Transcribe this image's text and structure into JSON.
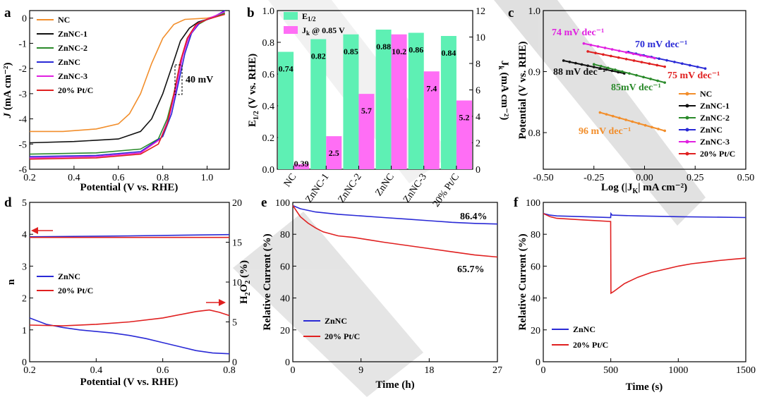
{
  "colors": {
    "NC": "#f28e2b",
    "ZnNC-1": "#111111",
    "ZnNC-2": "#2a8a2a",
    "ZnNC": "#2a2ad6",
    "ZnNC-3": "#e020e0",
    "20% Pt/C": "#e02020",
    "e_half_bar": "#5ef0b4",
    "jk_bar": "#ff6ef5"
  },
  "chart_data": [
    {
      "panel": "a",
      "type": "line",
      "xlabel": "Potential (V vs. RHE)",
      "ylabel_italic": "J",
      "ylabel_rest": " (mA cm⁻²)",
      "xlim": [
        0.2,
        1.1
      ],
      "ylim": [
        -6,
        0.3
      ],
      "xticks": [
        "0.2",
        "0.4",
        "0.6",
        "0.8",
        "1.0"
      ],
      "yticks": [
        "-6",
        "-5",
        "-4",
        "-3",
        "-2",
        "-1",
        "0"
      ],
      "annotation": "40 mV",
      "series": [
        {
          "name": "NC",
          "key": "NC",
          "x": [
            0.2,
            0.35,
            0.5,
            0.6,
            0.65,
            0.7,
            0.75,
            0.8,
            0.85,
            0.9,
            1.0,
            1.08
          ],
          "y": [
            -4.5,
            -4.5,
            -4.4,
            -4.2,
            -3.8,
            -3.0,
            -1.8,
            -0.8,
            -0.25,
            -0.05,
            0.0,
            0.15
          ]
        },
        {
          "name": "ZnNC-1",
          "key": "ZnNC-1",
          "x": [
            0.2,
            0.4,
            0.6,
            0.7,
            0.75,
            0.8,
            0.85,
            0.88,
            0.92,
            0.96,
            1.02,
            1.08
          ],
          "y": [
            -4.95,
            -4.9,
            -4.8,
            -4.5,
            -4.0,
            -3.0,
            -1.7,
            -0.9,
            -0.4,
            -0.15,
            0.0,
            0.2
          ]
        },
        {
          "name": "ZnNC-2",
          "key": "ZnNC-2",
          "x": [
            0.2,
            0.5,
            0.7,
            0.78,
            0.82,
            0.85,
            0.88,
            0.91,
            0.95,
            1.0,
            1.08
          ],
          "y": [
            -5.4,
            -5.35,
            -5.2,
            -4.8,
            -4.0,
            -3.0,
            -1.8,
            -0.9,
            -0.3,
            -0.05,
            0.2
          ]
        },
        {
          "name": "ZnNC",
          "key": "ZnNC",
          "x": [
            0.2,
            0.5,
            0.7,
            0.8,
            0.84,
            0.87,
            0.9,
            0.93,
            0.97,
            1.02,
            1.08
          ],
          "y": [
            -5.5,
            -5.45,
            -5.3,
            -4.7,
            -3.8,
            -2.6,
            -1.4,
            -0.6,
            -0.15,
            0.0,
            0.3
          ]
        },
        {
          "name": "ZnNC-3",
          "key": "ZnNC-3",
          "x": [
            0.2,
            0.5,
            0.7,
            0.79,
            0.83,
            0.86,
            0.89,
            0.92,
            0.96,
            1.01,
            1.08
          ],
          "y": [
            -5.55,
            -5.5,
            -5.35,
            -4.8,
            -3.9,
            -2.8,
            -1.5,
            -0.7,
            -0.2,
            0.0,
            0.25
          ]
        },
        {
          "name": "20% Pt/C",
          "key": "20% Pt/C",
          "x": [
            0.2,
            0.5,
            0.7,
            0.78,
            0.82,
            0.85,
            0.88,
            0.91,
            0.95,
            1.0,
            1.08
          ],
          "y": [
            -5.6,
            -5.55,
            -5.4,
            -5.0,
            -4.2,
            -3.0,
            -1.7,
            -0.8,
            -0.25,
            -0.05,
            0.15
          ]
        }
      ]
    },
    {
      "panel": "b",
      "type": "bar",
      "categories": [
        "NC",
        "ZnNC-1",
        "ZnNC-2",
        "ZnNC",
        "ZnNC-3",
        "20% Pt/C"
      ],
      "series": [
        {
          "name": "E1/2",
          "axis": "left",
          "values": [
            0.74,
            0.82,
            0.85,
            0.88,
            0.86,
            0.84
          ],
          "labels": [
            "0.74",
            "0.82",
            "0.85",
            "0.88",
            "0.86",
            "0.84"
          ]
        },
        {
          "name": "Jk @ 0.85 V",
          "axis": "right",
          "values": [
            0.39,
            2.5,
            5.7,
            10.2,
            7.4,
            5.2
          ],
          "labels": [
            "0.39",
            "2.5",
            "5.7",
            "10.2",
            "7.4",
            "5.2"
          ]
        }
      ],
      "legend": [
        "E",
        "1/2",
        "J",
        "k",
        " @ 0.85 V"
      ],
      "ylabel_left": [
        "E",
        "1/2",
        " (V vs. RHE)"
      ],
      "ylabel_right": [
        "J",
        "k",
        " (mA cm⁻²)"
      ],
      "ylim_left": [
        0,
        1.0
      ],
      "ylim_right": [
        0,
        12
      ],
      "yticks_left": [
        "0.0",
        "0.2",
        "0.4",
        "0.6",
        "0.8",
        "1.0"
      ],
      "yticks_right": [
        "0",
        "2",
        "4",
        "6",
        "8",
        "10",
        "12"
      ]
    },
    {
      "panel": "c",
      "type": "line",
      "xlabel": "Log (|J",
      "xlabel_sub": "K",
      "xlabel_rest": "| mA cm⁻²)",
      "ylabel": "Potential (V vs. RHE)",
      "xlim": [
        -0.5,
        0.5
      ],
      "ylim": [
        0.74,
        1.0
      ],
      "xticks": [
        "-0.50",
        "-0.25",
        "0.00",
        "0.25",
        "0.50"
      ],
      "yticks": [
        "0.8",
        "0.9",
        "1.0"
      ],
      "series": [
        {
          "name": "NC",
          "key": "NC",
          "x": [
            -0.22,
            0.1
          ],
          "y": [
            0.833,
            0.803
          ],
          "tafel": "96 mV dec⁻¹"
        },
        {
          "name": "ZnNC-1",
          "key": "ZnNC-1",
          "x": [
            -0.4,
            -0.1
          ],
          "y": [
            0.918,
            0.897
          ],
          "tafel": "88 mV dec⁻¹"
        },
        {
          "name": "ZnNC-2",
          "key": "ZnNC-2",
          "x": [
            -0.25,
            0.1
          ],
          "y": [
            0.912,
            0.882
          ],
          "tafel": "85mV dec⁻¹"
        },
        {
          "name": "ZnNC",
          "key": "ZnNC",
          "x": [
            -0.08,
            0.3
          ],
          "y": [
            0.932,
            0.905
          ],
          "tafel": "70 mV dec⁻¹"
        },
        {
          "name": "ZnNC-3",
          "key": "ZnNC-3",
          "x": [
            -0.3,
            0.05
          ],
          "y": [
            0.946,
            0.922
          ],
          "tafel": "74 mV dec⁻¹"
        },
        {
          "name": "20% Pt/C",
          "key": "20% Pt/C",
          "x": [
            -0.28,
            0.1
          ],
          "y": [
            0.933,
            0.908
          ],
          "tafel": "75 mV dec⁻¹"
        }
      ]
    },
    {
      "panel": "d",
      "type": "line",
      "xlabel": "Potential (V vs. RHE)",
      "ylabel_left": "n",
      "ylabel_right": [
        "H",
        "2",
        "O",
        "2",
        " (%)"
      ],
      "xlim": [
        0.2,
        0.8
      ],
      "ylim_left": [
        0,
        5
      ],
      "ylim_right": [
        0,
        20
      ],
      "xticks": [
        "0.2",
        "0.4",
        "0.6",
        "0.8"
      ],
      "yticks_left": [
        "0",
        "1",
        "2",
        "3",
        "4",
        "5"
      ],
      "yticks_right": [
        "0",
        "5",
        "10",
        "15",
        "20"
      ],
      "series": [
        {
          "name": "ZnNC n",
          "key": "ZnNC",
          "axis": "left",
          "x": [
            0.2,
            0.5,
            0.8
          ],
          "y": [
            3.92,
            3.95,
            3.99
          ]
        },
        {
          "name": "20% Pt/C n",
          "key": "20% Pt/C",
          "axis": "left",
          "x": [
            0.2,
            0.5,
            0.8
          ],
          "y": [
            3.9,
            3.9,
            3.9
          ]
        },
        {
          "name": "ZnNC H2O2",
          "key": "ZnNC",
          "axis": "right",
          "x": [
            0.2,
            0.25,
            0.3,
            0.35,
            0.4,
            0.45,
            0.5,
            0.55,
            0.6,
            0.65,
            0.7,
            0.75,
            0.8
          ],
          "y": [
            5.5,
            4.7,
            4.3,
            4.0,
            3.8,
            3.6,
            3.3,
            2.9,
            2.4,
            1.9,
            1.4,
            1.1,
            1.0
          ]
        },
        {
          "name": "20% Pt/C H2O2",
          "key": "20% Pt/C",
          "axis": "right",
          "x": [
            0.2,
            0.3,
            0.4,
            0.5,
            0.6,
            0.7,
            0.74,
            0.77,
            0.8
          ],
          "y": [
            4.6,
            4.5,
            4.7,
            5.0,
            5.5,
            6.3,
            6.5,
            6.2,
            5.8
          ]
        }
      ],
      "legend": [
        "ZnNC",
        "20% Pt/C"
      ]
    },
    {
      "panel": "e",
      "type": "line",
      "xlabel": "Time (h)",
      "ylabel": "Relative Current (%)",
      "xlim": [
        0,
        27
      ],
      "ylim": [
        0,
        100
      ],
      "xticks": [
        "0",
        "9",
        "18",
        "27"
      ],
      "yticks": [
        "0",
        "20",
        "40",
        "60",
        "80",
        "100"
      ],
      "series": [
        {
          "name": "ZnNC",
          "key": "ZnNC",
          "x": [
            0,
            1,
            3,
            6,
            9,
            12,
            15,
            18,
            21,
            24,
            27
          ],
          "y": [
            98,
            96,
            94,
            92.5,
            91.5,
            90.5,
            89.5,
            88.5,
            87.5,
            86.8,
            86.4
          ]
        },
        {
          "name": "20% Pt/C",
          "key": "20% Pt/C",
          "x": [
            0,
            1,
            2,
            3,
            4,
            6,
            8,
            10,
            12,
            15,
            18,
            21,
            24,
            27
          ],
          "y": [
            98,
            91,
            87,
            84,
            81.5,
            79,
            78,
            76.5,
            75,
            73,
            71,
            69,
            67,
            65.7
          ]
        }
      ],
      "annotations": [
        "86.4%",
        "65.7%"
      ],
      "legend": [
        "ZnNC",
        "20% Pt/C"
      ]
    },
    {
      "panel": "f",
      "type": "line",
      "xlabel": "Time (s)",
      "ylabel": "Relative Current (%)",
      "xlim": [
        0,
        1500
      ],
      "ylim": [
        0,
        100
      ],
      "xticks": [
        "0",
        "500",
        "1000",
        "1500"
      ],
      "yticks": [
        "0",
        "20",
        "40",
        "60",
        "80",
        "100"
      ],
      "series": [
        {
          "name": "ZnNC",
          "key": "ZnNC",
          "x": [
            0,
            50,
            100,
            300,
            499,
            501,
            510,
            700,
            1000,
            1500
          ],
          "y": [
            93,
            92,
            91.5,
            91,
            90.5,
            93,
            92,
            91.5,
            91,
            90.5
          ]
        },
        {
          "name": "20% Pt/C",
          "key": "20% Pt/C",
          "x": [
            0,
            50,
            100,
            300,
            499,
            501,
            520,
            600,
            700,
            800,
            900,
            1000,
            1100,
            1200,
            1300,
            1400,
            1500
          ],
          "y": [
            93,
            91,
            90,
            89,
            88,
            43,
            44,
            49,
            53,
            56,
            58,
            60,
            61.5,
            62.5,
            63.5,
            64.3,
            65
          ]
        }
      ],
      "legend": [
        "ZnNC",
        "20% Pt/C"
      ]
    }
  ],
  "panel_labels": [
    "a",
    "b",
    "c",
    "d",
    "e",
    "f"
  ]
}
